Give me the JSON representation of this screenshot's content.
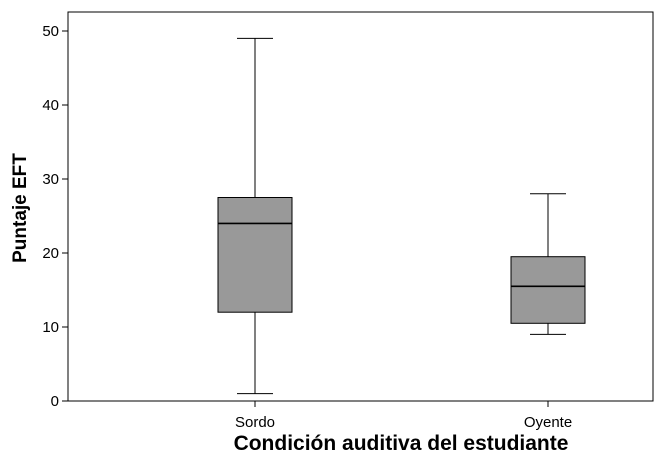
{
  "chart_data": {
    "type": "boxplot",
    "xlabel": "Condición auditiva del estudiante",
    "ylabel": "Puntaje EFT",
    "ylim": [
      0,
      50
    ],
    "yticks": [
      0,
      10,
      20,
      30,
      40,
      50
    ],
    "categories": [
      "Sordo",
      "Oyente"
    ],
    "boxes": [
      {
        "category": "Sordo",
        "min": 1,
        "q1": 12,
        "median": 24,
        "q3": 27.5,
        "max": 49
      },
      {
        "category": "Oyente",
        "min": 9,
        "q1": 10.5,
        "median": 15.5,
        "q3": 19.5,
        "max": 28
      }
    ],
    "grid": false,
    "box_color": "#999999",
    "line_color": "#000000"
  }
}
